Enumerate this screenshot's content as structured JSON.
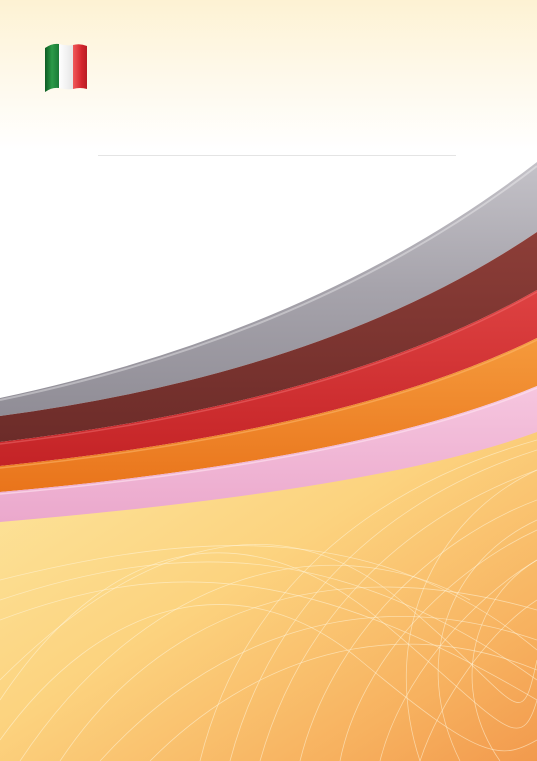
{
  "page": {
    "type": "document-cover",
    "title_text": "",
    "flag": {
      "country": "Italy",
      "icon": "italy-flag-icon",
      "colors": [
        "#1f8a3b",
        "#ffffff",
        "#d5262e"
      ]
    },
    "swoosh_colors": {
      "gray": "#a7a3ac",
      "maroon": "#7b3430",
      "red": "#cc2a2a",
      "orange": "#ee7f22",
      "pink": "#efb2d3",
      "base_light": "#fde9a3",
      "base_dark": "#f5a85e"
    }
  }
}
